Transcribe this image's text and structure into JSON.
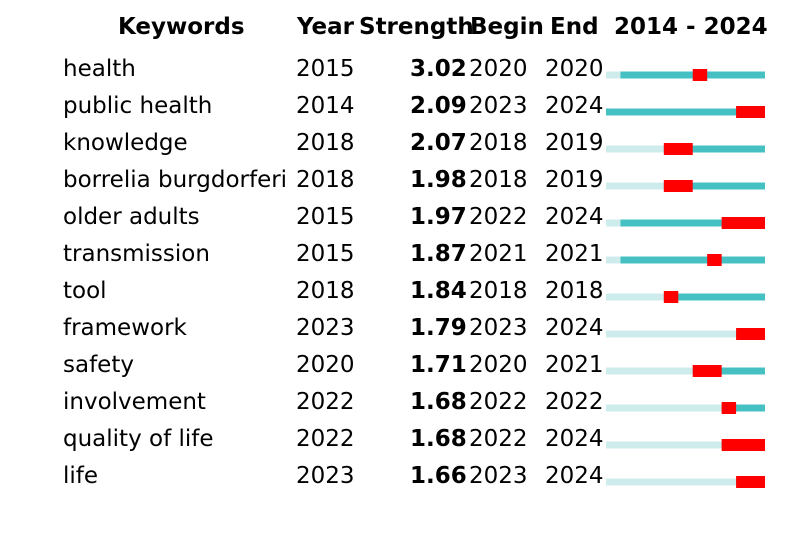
{
  "header": {
    "keywords": "Keywords",
    "year": "Year",
    "strength": "Strength",
    "begin": "Begin",
    "end": "End",
    "range": "2014 - 2024"
  },
  "chart_data": {
    "type": "table",
    "range_start": 2014,
    "range_end": 2024,
    "colors": {
      "inactive": "#cfecec",
      "active": "#45c1c4",
      "burst": "#ff0000"
    },
    "rows": [
      {
        "keyword": "health",
        "year": "2015",
        "strength": "3.02",
        "begin": "2020",
        "end": "2020"
      },
      {
        "keyword": "public health",
        "year": "2014",
        "strength": "2.09",
        "begin": "2023",
        "end": "2024"
      },
      {
        "keyword": "knowledge",
        "year": "2018",
        "strength": "2.07",
        "begin": "2018",
        "end": "2019"
      },
      {
        "keyword": "borrelia burgdorferi",
        "year": "2018",
        "strength": "1.98",
        "begin": "2018",
        "end": "2019"
      },
      {
        "keyword": "older adults",
        "year": "2015",
        "strength": "1.97",
        "begin": "2022",
        "end": "2024"
      },
      {
        "keyword": "transmission",
        "year": "2015",
        "strength": "1.87",
        "begin": "2021",
        "end": "2021"
      },
      {
        "keyword": "tool",
        "year": "2018",
        "strength": "1.84",
        "begin": "2018",
        "end": "2018"
      },
      {
        "keyword": "framework",
        "year": "2023",
        "strength": "1.79",
        "begin": "2023",
        "end": "2024"
      },
      {
        "keyword": "safety",
        "year": "2020",
        "strength": "1.71",
        "begin": "2020",
        "end": "2021"
      },
      {
        "keyword": "involvement",
        "year": "2022",
        "strength": "1.68",
        "begin": "2022",
        "end": "2022"
      },
      {
        "keyword": "quality of life",
        "year": "2022",
        "strength": "1.68",
        "begin": "2022",
        "end": "2024"
      },
      {
        "keyword": "life",
        "year": "2023",
        "strength": "1.66",
        "begin": "2023",
        "end": "2024"
      }
    ]
  }
}
